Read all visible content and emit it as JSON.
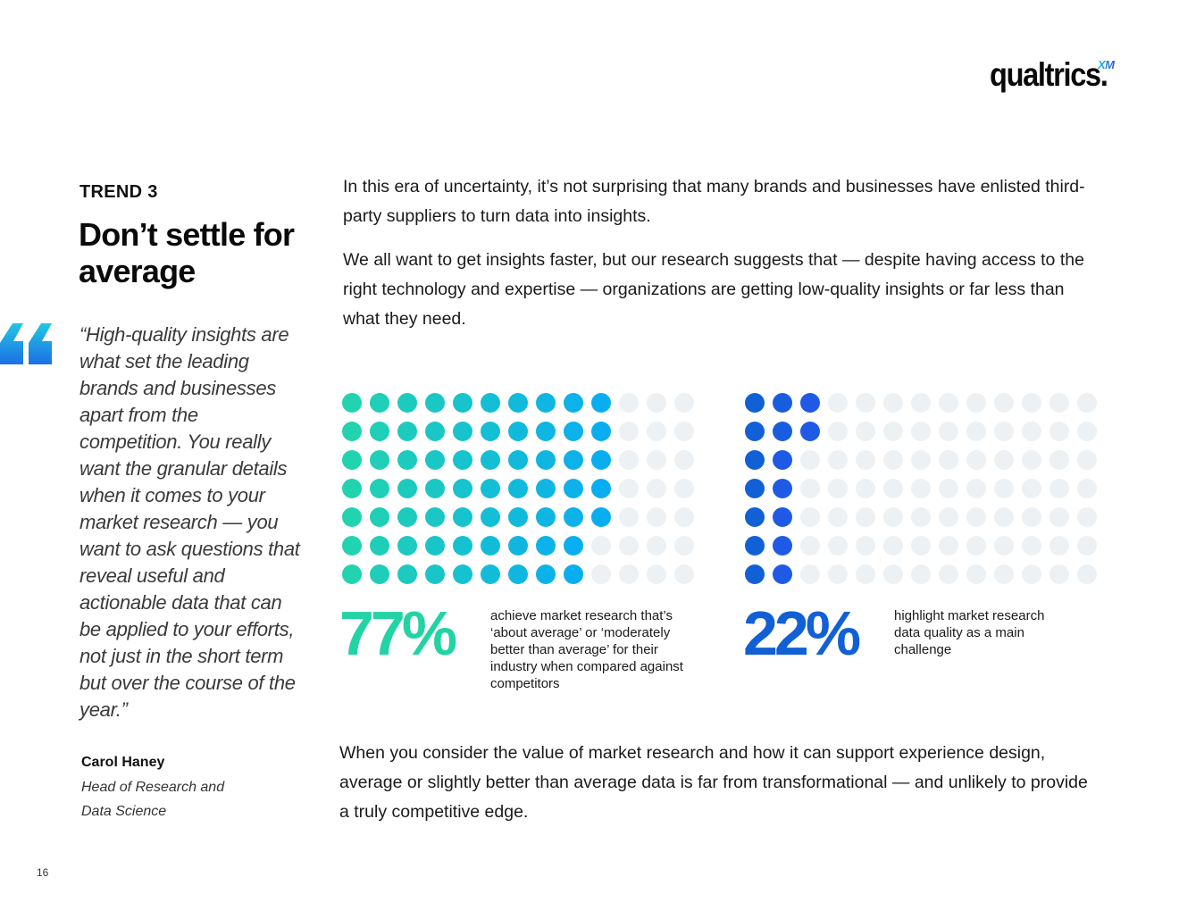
{
  "logo": {
    "word": "qualtrics.",
    "superscript": "XM"
  },
  "trend": {
    "label": "TREND 3",
    "title": "Don’t settle for average"
  },
  "quote": {
    "text": "“High-quality insights are what set the leading brands and businesses apart from the competition. You really want the granular details when it comes to your market research — you want to ask questions that reveal useful and actionable data that can be applied to your efforts, not just in the short term but over the course of the year.”",
    "author": "Carol Haney",
    "role": "Head of Research and Data Science"
  },
  "body": {
    "paragraph1": "In this era of uncertainty, it’s not surprising that many brands and businesses have enlisted third-party suppliers to turn data into insights.",
    "paragraph2": "We all want to get insights faster, but our research suggests that — despite having access to the right technology and expertise — organizations are getting low-quality insights or far less than what they need.",
    "paragraph3": "When you consider the value of market research and how it can support experience design, average or slightly better than average data is far from transformational — and unlikely to provide a truly competitive edge."
  },
  "stats": [
    {
      "value": "77%",
      "description": "achieve market research that’s ‘about average’ or ‘moderately better than average’ for their industry when compared against competitors"
    },
    {
      "value": "22%",
      "description": "highlight market research data quality as a main challenge"
    }
  ],
  "chart_data": [
    {
      "type": "waffle",
      "title": "77%",
      "rows": 7,
      "columns": 13,
      "filled_per_row": [
        10,
        10,
        10,
        10,
        10,
        9,
        9
      ],
      "percent": 77,
      "colors": {
        "start": "#22d3b0",
        "end": "#09aef0",
        "empty": "#edf1f4"
      }
    },
    {
      "type": "waffle",
      "title": "22%",
      "rows": 7,
      "columns": 13,
      "filled_per_row": [
        3,
        3,
        2,
        2,
        2,
        2,
        2
      ],
      "percent": 22,
      "colors": {
        "start": "#1160d6",
        "end": "#1f5ae6",
        "empty": "#edf1f4"
      }
    }
  ],
  "page": {
    "number": "16"
  },
  "colors": {
    "accent_teal": "#22d3a4",
    "accent_blue": "#1160d6",
    "quote_mark_top": "#21c7e0",
    "quote_mark_bottom": "#1e6fe6"
  }
}
